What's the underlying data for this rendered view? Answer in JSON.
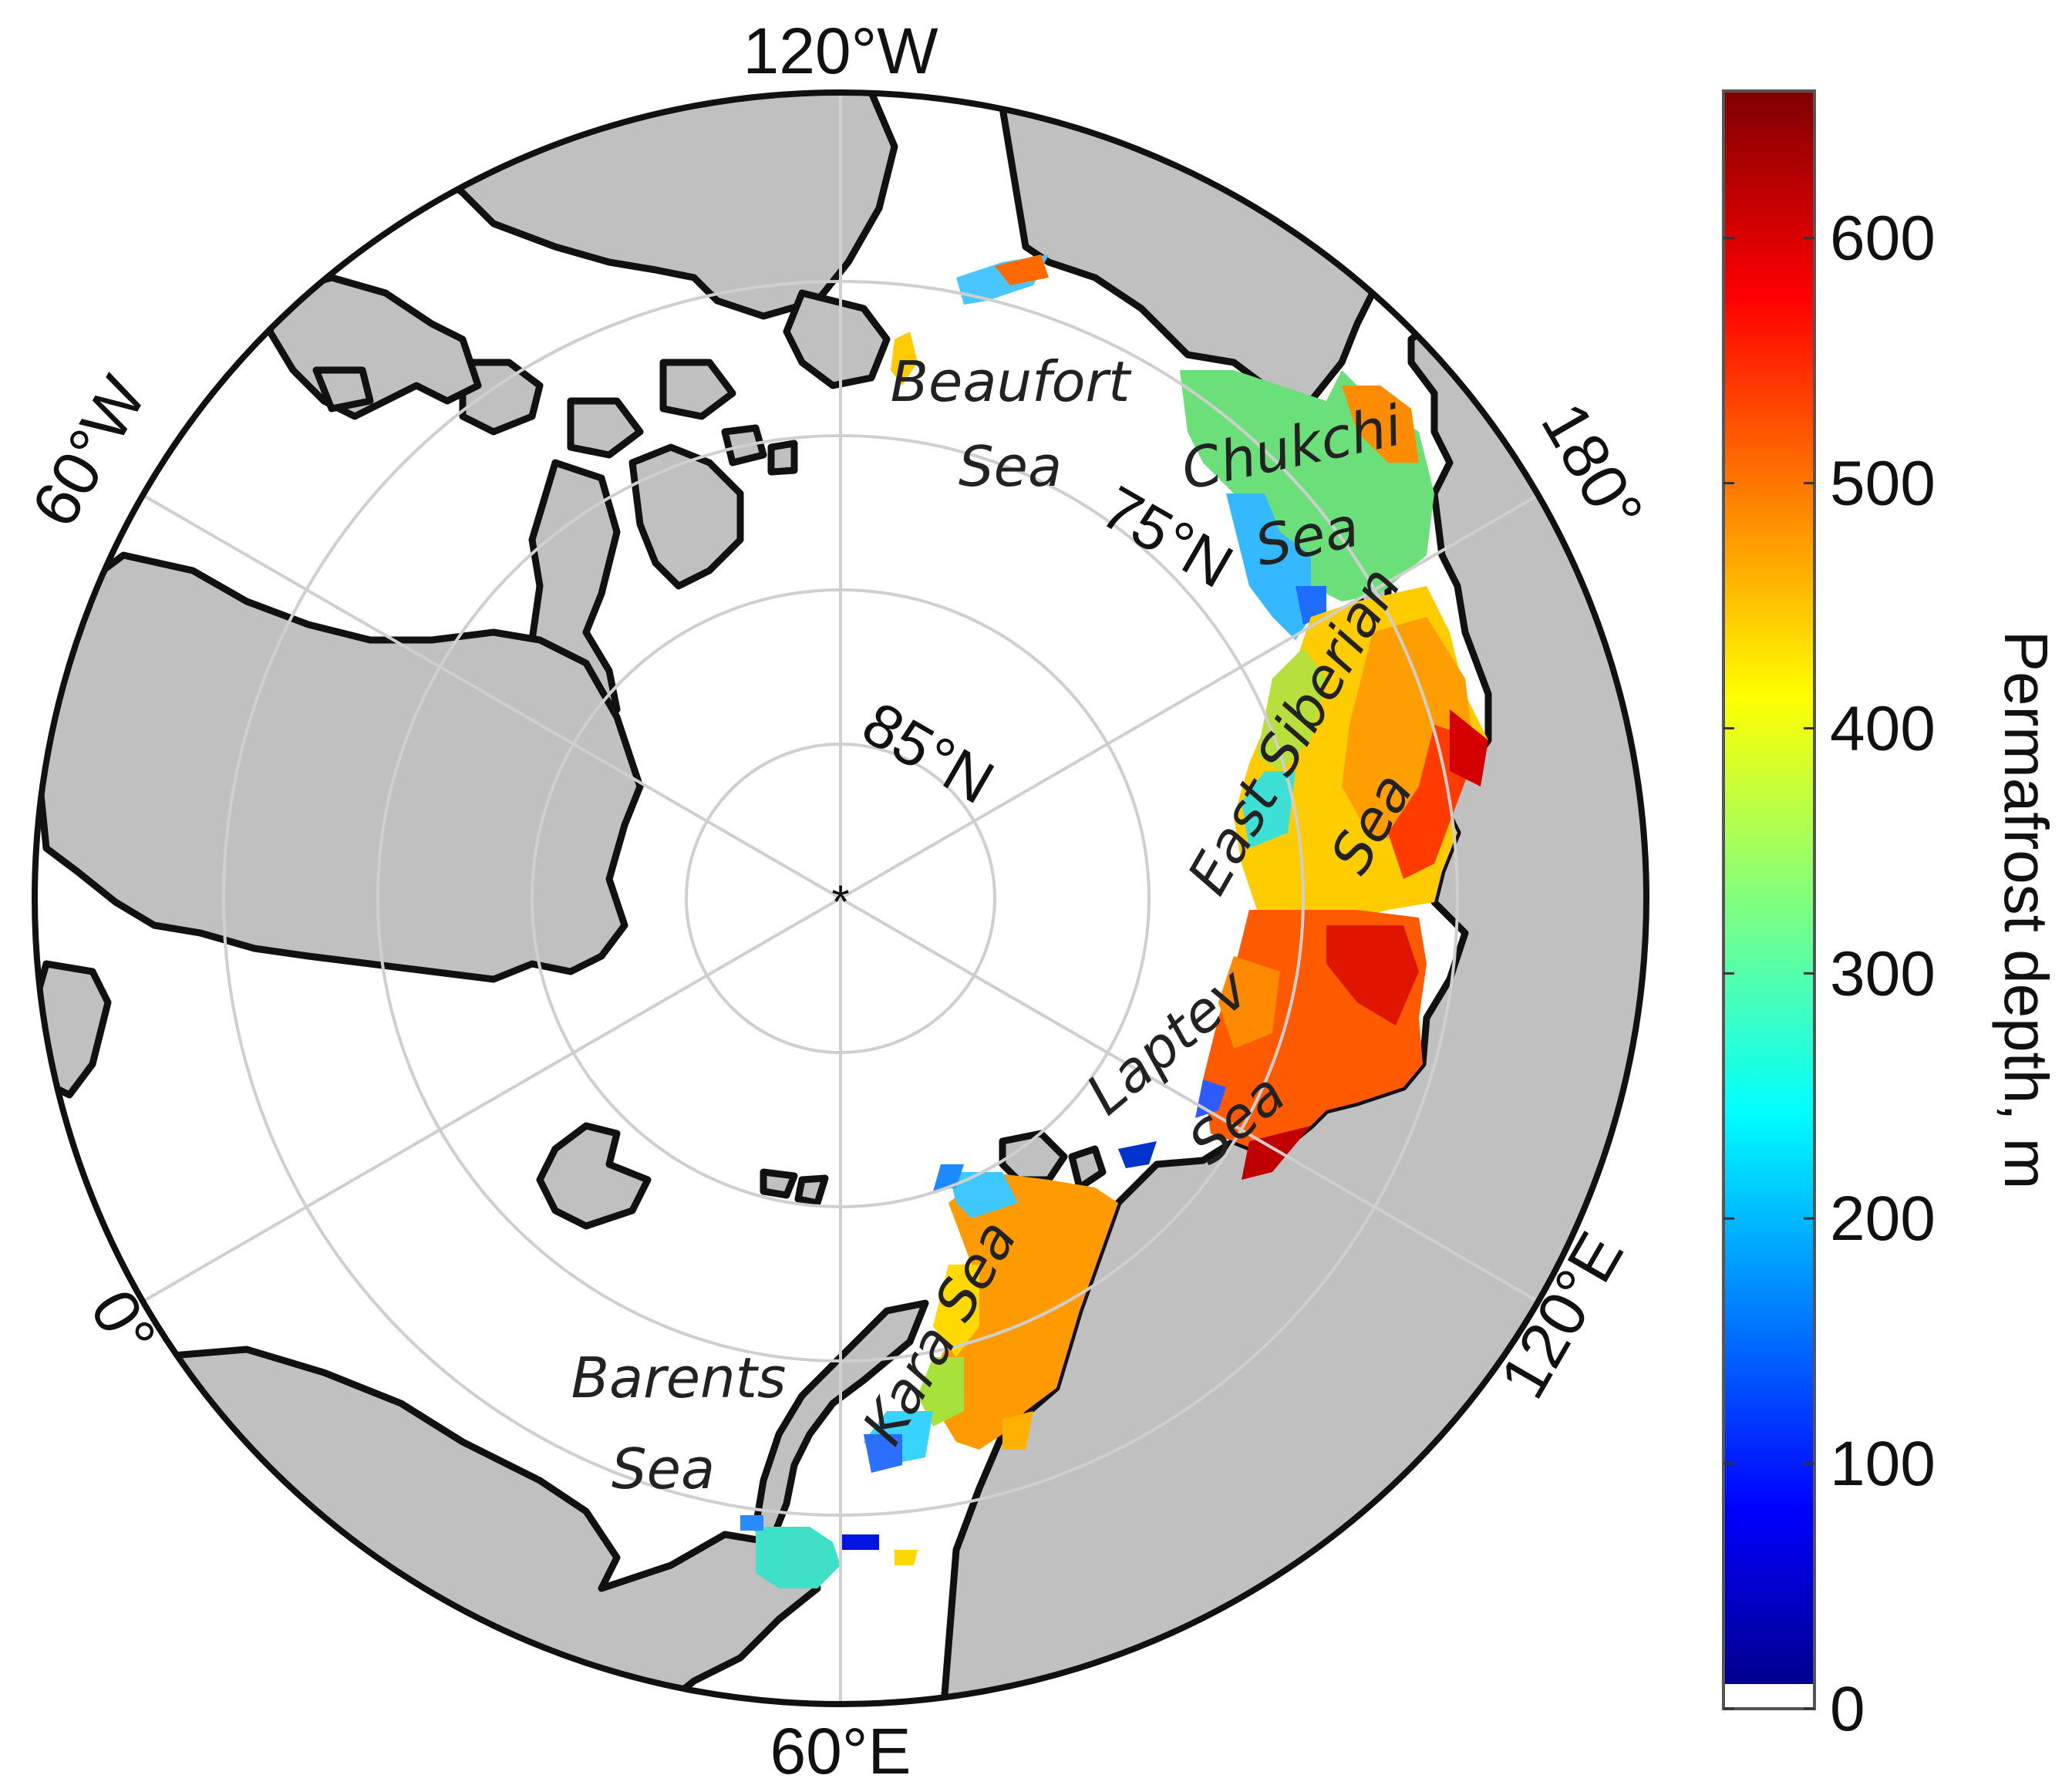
{
  "map": {
    "longitude_labels": [
      "120°W",
      "180°",
      "120°E",
      "60°E",
      "0°",
      "60°W"
    ],
    "latitude_labels": [
      "75°N",
      "85°N"
    ],
    "sea_labels": {
      "beaufort": [
        "Beaufort",
        "Sea"
      ],
      "chukchi": [
        "Chukchi",
        "Sea"
      ],
      "east_siberian": [
        "East Siberian",
        "Sea"
      ],
      "laptev": [
        "Laptev",
        "Sea"
      ],
      "kara": "Kara Sea",
      "barents": [
        "Barents",
        "Sea"
      ]
    },
    "colors": {
      "land": "#c0c0c0",
      "ocean": "#ffffff",
      "coastline": "#111111",
      "graticule": "#cfcfcf"
    }
  },
  "colorbar": {
    "title": "Permafrost depth, m",
    "ticks": [
      "0",
      "100",
      "200",
      "300",
      "400",
      "500",
      "600"
    ],
    "range": [
      0,
      660
    ],
    "colormap": "jet"
  }
}
